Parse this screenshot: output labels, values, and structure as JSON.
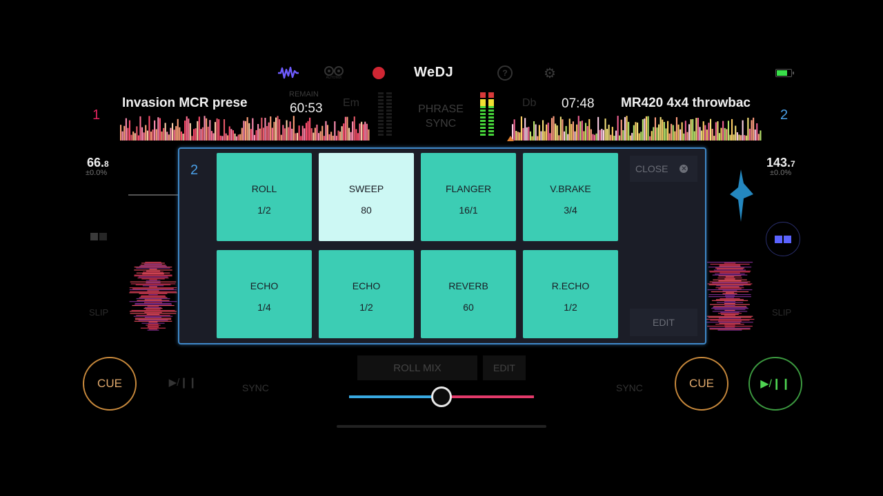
{
  "app": {
    "name": "WeDJ"
  },
  "topbar": {
    "icons": [
      "waveform-icon",
      "autoplay-icon",
      "record-icon",
      "help-icon",
      "settings-icon",
      "battery-icon"
    ],
    "autoplay_label": "AUTOMIX"
  },
  "deck1": {
    "number": "1",
    "title": "Invasion MCR prese",
    "time_label": "REMAIN",
    "time": "60:53",
    "key": "Em",
    "bpm_main": "66.",
    "bpm_decimal": "8",
    "pitch": "±0.0%",
    "slip": "SLIP",
    "cue": "CUE",
    "play": "▶/❙❙",
    "sync": "SYNC",
    "wave_colors": [
      "#ff8fb3",
      "#ff4d6d",
      "#ffa07a",
      "#e85a6a",
      "#ffd1a8",
      "#ff6f91"
    ]
  },
  "deck2": {
    "number": "2",
    "title": "MR420 4x4 throwbac",
    "time": "07:48",
    "key": "Db",
    "bpm_main": "143.",
    "bpm_decimal": "7",
    "pitch": "±0.0%",
    "slip": "SLIP",
    "cue": "CUE",
    "play": "▶/❙❙",
    "sync": "SYNC",
    "wave_colors": [
      "#b7e36b",
      "#ffcf66",
      "#ff9f80",
      "#f06292",
      "#f5e17a",
      "#ffd0e6"
    ]
  },
  "mixer": {
    "phrase_sync": [
      "PHRASE",
      "SYNC"
    ]
  },
  "fx_panel": {
    "deck": "2",
    "close_label": "CLOSE",
    "edit_label": "EDIT",
    "pads": [
      {
        "name": "ROLL",
        "value": "1/2",
        "active": false
      },
      {
        "name": "SWEEP",
        "value": "80",
        "active": true
      },
      {
        "name": "FLANGER",
        "value": "16/1",
        "active": false
      },
      {
        "name": "V.BRAKE",
        "value": "3/4",
        "active": false
      },
      {
        "name": "ECHO",
        "value": "1/4",
        "active": false
      },
      {
        "name": "ECHO",
        "value": "1/2",
        "active": false
      },
      {
        "name": "REVERB",
        "value": "60",
        "active": false
      },
      {
        "name": "R.ECHO",
        "value": "1/2",
        "active": false
      }
    ]
  },
  "bottom": {
    "mode_label": "ROLL MIX",
    "edit_label": "EDIT",
    "crossfader_position": 0.5,
    "crossfader_colors": {
      "left": "#39a9e0",
      "right": "#e23a6a"
    }
  },
  "colors": {
    "accent_blue": "#3f88c8",
    "pad": "#3ccdb4",
    "pad_active": "#cdf8f4",
    "cue": "#c8893c",
    "play": "#3c9a40"
  }
}
